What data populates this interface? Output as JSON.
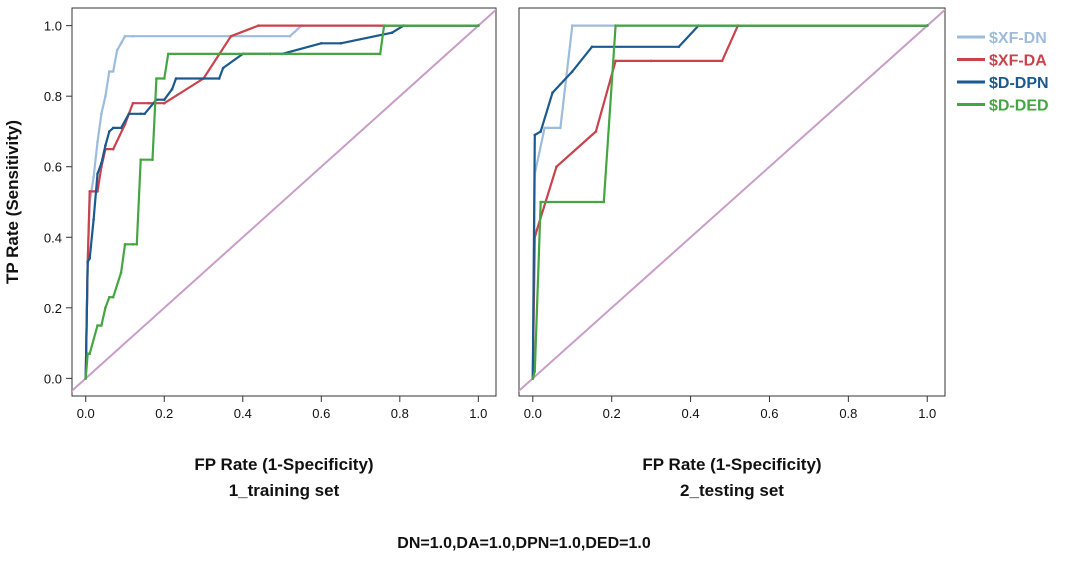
{
  "chart_data": [
    {
      "type": "line",
      "title": "1_training set",
      "xlabel": "FP Rate (1-Specificity)",
      "ylabel": "TP Rate (Sensitivity)",
      "xlim": [
        -0.035,
        1.045
      ],
      "ylim": [
        -0.05,
        1.05
      ],
      "xticks": [
        "0.0",
        "0.2",
        "0.4",
        "0.6",
        "0.8",
        "1.0"
      ],
      "yticks": [
        "0.0",
        "0.2",
        "0.4",
        "0.6",
        "0.8",
        "1.0"
      ],
      "grid": false,
      "series": [
        {
          "name": "$XF-DN",
          "color": "#9dbcdc",
          "x": [
            0,
            0.005,
            0.01,
            0.02,
            0.03,
            0.04,
            0.05,
            0.06,
            0.07,
            0.08,
            0.09,
            0.1,
            0.12,
            0.52,
            0.55,
            1.0
          ],
          "y": [
            0,
            0.33,
            0.5,
            0.57,
            0.67,
            0.75,
            0.8,
            0.87,
            0.87,
            0.93,
            0.95,
            0.97,
            0.97,
            0.97,
            1.0,
            1.0
          ]
        },
        {
          "name": "$XF-DA",
          "color": "#c8434b",
          "x": [
            0,
            0.005,
            0.01,
            0.03,
            0.04,
            0.05,
            0.07,
            0.1,
            0.12,
            0.16,
            0.2,
            0.3,
            0.37,
            0.44,
            1.0
          ],
          "y": [
            0,
            0.33,
            0.53,
            0.53,
            0.6,
            0.65,
            0.65,
            0.72,
            0.78,
            0.78,
            0.78,
            0.85,
            0.97,
            1.0,
            1.0
          ]
        },
        {
          "name": "$D-DPN",
          "color": "#1a5a8e",
          "x": [
            0,
            0.005,
            0.01,
            0.02,
            0.03,
            0.04,
            0.05,
            0.06,
            0.07,
            0.09,
            0.11,
            0.14,
            0.15,
            0.18,
            0.2,
            0.22,
            0.23,
            0.34,
            0.35,
            0.4,
            0.47,
            0.5,
            0.6,
            0.65,
            0.78,
            0.81,
            1.0
          ],
          "y": [
            0,
            0.33,
            0.34,
            0.45,
            0.58,
            0.61,
            0.66,
            0.7,
            0.71,
            0.71,
            0.75,
            0.75,
            0.75,
            0.79,
            0.79,
            0.82,
            0.85,
            0.85,
            0.88,
            0.92,
            0.92,
            0.92,
            0.95,
            0.95,
            0.98,
            1.0,
            1.0
          ]
        },
        {
          "name": "$D-DED",
          "color": "#44a541",
          "x": [
            0,
            0.005,
            0.01,
            0.03,
            0.04,
            0.05,
            0.06,
            0.07,
            0.09,
            0.1,
            0.12,
            0.13,
            0.14,
            0.17,
            0.18,
            0.2,
            0.21,
            0.5,
            0.75,
            0.76,
            1.0
          ],
          "y": [
            0,
            0.07,
            0.07,
            0.15,
            0.15,
            0.2,
            0.23,
            0.23,
            0.3,
            0.38,
            0.38,
            0.38,
            0.62,
            0.62,
            0.85,
            0.85,
            0.92,
            0.92,
            0.92,
            1.0,
            1.0
          ]
        },
        {
          "name": "",
          "color": "#c89ec8",
          "x": [
            -0.035,
            1.045
          ],
          "y": [
            -0.035,
            1.045
          ]
        }
      ]
    },
    {
      "type": "line",
      "title": "2_testing set",
      "xlabel": "FP Rate (1-Specificity)",
      "ylabel": "",
      "xlim": [
        -0.035,
        1.045
      ],
      "ylim": [
        -0.05,
        1.05
      ],
      "xticks": [
        "0.0",
        "0.2",
        "0.4",
        "0.6",
        "0.8",
        "1.0"
      ],
      "yticks": [],
      "grid": false,
      "series": [
        {
          "name": "$XF-DN",
          "color": "#9dbcdc",
          "x": [
            0,
            0.005,
            0.03,
            0.04,
            0.07,
            0.1,
            1.0
          ],
          "y": [
            0,
            0.58,
            0.71,
            0.71,
            0.71,
            1.0,
            1.0
          ]
        },
        {
          "name": "$XF-DA",
          "color": "#c8434b",
          "x": [
            0,
            0.005,
            0.01,
            0.06,
            0.16,
            0.21,
            0.3,
            0.48,
            0.52,
            1.0
          ],
          "y": [
            0,
            0.4,
            0.42,
            0.6,
            0.7,
            0.9,
            0.9,
            0.9,
            1.0,
            1.0
          ]
        },
        {
          "name": "$D-DPN",
          "color": "#1a5a8e",
          "x": [
            0,
            0.005,
            0.02,
            0.05,
            0.1,
            0.15,
            0.37,
            0.42,
            1.0
          ],
          "y": [
            0,
            0.69,
            0.7,
            0.81,
            0.87,
            0.94,
            0.94,
            1.0,
            1.0
          ]
        },
        {
          "name": "$D-DED",
          "color": "#44a541",
          "x": [
            0,
            0.005,
            0.02,
            0.18,
            0.21,
            1.0
          ],
          "y": [
            0,
            0.02,
            0.5,
            0.5,
            1.0,
            1.0
          ]
        },
        {
          "name": "",
          "color": "#c89ec8",
          "x": [
            -0.035,
            1.045
          ],
          "y": [
            -0.035,
            1.045
          ]
        }
      ]
    }
  ],
  "legend": {
    "placement": "right",
    "entries": [
      {
        "label": "$XF-DN",
        "color": "#9dbcdc"
      },
      {
        "label": "$XF-DA",
        "color": "#c8434b"
      },
      {
        "label": "$D-DPN",
        "color": "#1a5a8e"
      },
      {
        "label": "$D-DED",
        "color": "#44a541"
      }
    ]
  },
  "footer": {
    "note": "DN=1.0,DA=1.0,DPN=1.0,DED=1.0"
  }
}
